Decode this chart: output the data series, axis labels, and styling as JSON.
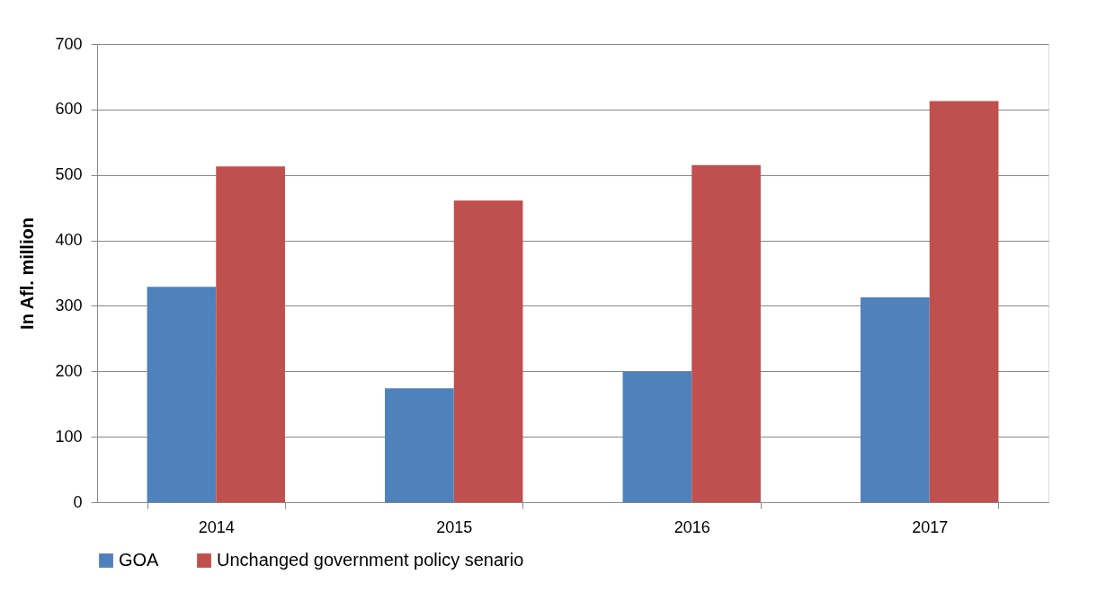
{
  "chart_data": {
    "type": "bar",
    "ylabel": "In Afl. million",
    "categories": [
      "2014",
      "2015",
      "2016",
      "2017"
    ],
    "series": [
      {
        "name": "GOA",
        "color": "#4f81bd",
        "values": [
          329,
          174,
          199,
          313
        ]
      },
      {
        "name": "Unchanged government policy senario",
        "color": "#c0504d",
        "values": [
          513,
          461,
          515,
          613
        ]
      }
    ],
    "ylim": [
      0,
      700
    ],
    "yticks": [
      0,
      100,
      200,
      300,
      400,
      500,
      600,
      700
    ],
    "grid": "y",
    "legend": "bottom"
  }
}
